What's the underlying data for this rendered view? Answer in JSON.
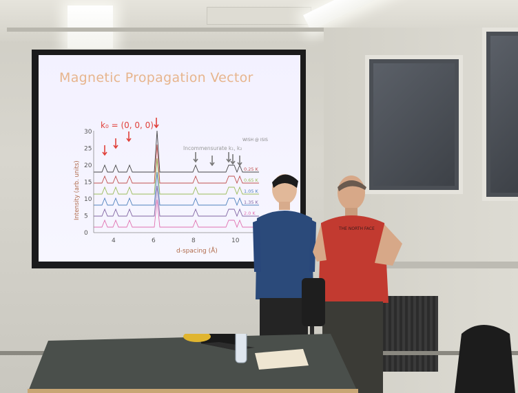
{
  "slide": {
    "title": "Magnetic Propagation Vector",
    "k0_label": "k₀ = (0, 0, 0)",
    "instrument": "WISH @ ISIS",
    "incommensurate_label": "Incommensurate k₁, k₂",
    "y_axis_label": "Intensity (arb. units)",
    "x_axis_label": "d-spacing (Å)",
    "y_ticks": [
      "0",
      "5",
      "10",
      "15",
      "20",
      "25",
      "30"
    ],
    "x_ticks": [
      "4",
      "6",
      "8",
      "10"
    ],
    "temperature_labels": [
      "0.25 K",
      "0.65 K",
      "1.05 K",
      "1.35 K",
      "2.0 K"
    ],
    "trace_colors": [
      "#444444",
      "#c0504d",
      "#9bbb59",
      "#4f81bd",
      "#8064a2",
      "#e070b0"
    ]
  },
  "scene": {
    "wall_color": "#d6d4cb",
    "shirt_left_color": "#2b4a7a",
    "shirt_right_color": "#c23a30",
    "tshirt_text": "THE NORTH FACE"
  }
}
